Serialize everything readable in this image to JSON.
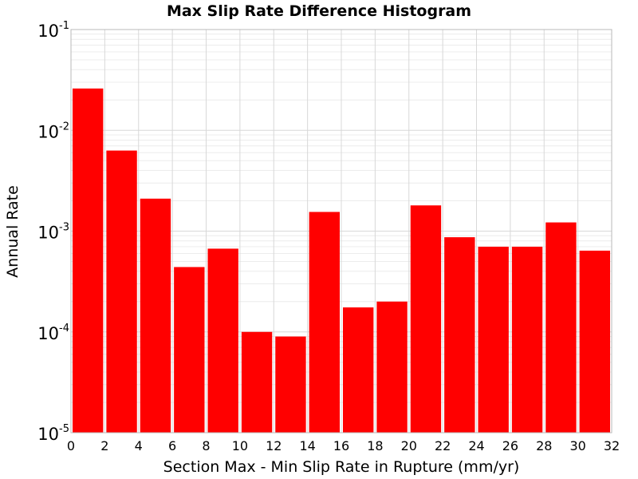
{
  "chart_data": {
    "type": "bar",
    "title": "Max Slip Rate Difference Histogram",
    "xlabel": "Section Max - Min Slip Rate in Rupture (mm/yr)",
    "ylabel": "Annual Rate",
    "xlim": [
      0,
      32
    ],
    "ylim": [
      1e-05,
      0.1
    ],
    "yscale": "log",
    "grid": true,
    "bar_color": "#ff0000",
    "xticks": [
      "0",
      "2",
      "4",
      "6",
      "8",
      "10",
      "12",
      "14",
      "16",
      "18",
      "20",
      "22",
      "24",
      "26",
      "28",
      "30",
      "32"
    ],
    "yticks": [
      {
        "value": 0.1,
        "base": "10",
        "exp": "-1"
      },
      {
        "value": 0.01,
        "base": "10",
        "exp": "-2"
      },
      {
        "value": 0.001,
        "base": "10",
        "exp": "-3"
      },
      {
        "value": 0.0001,
        "base": "10",
        "exp": "-4"
      },
      {
        "value": 1e-05,
        "base": "10",
        "exp": "-5"
      }
    ],
    "bins": [
      {
        "x0": 0,
        "x1": 2,
        "value": 0.026
      },
      {
        "x0": 2,
        "x1": 4,
        "value": 0.0063
      },
      {
        "x0": 4,
        "x1": 6,
        "value": 0.0021
      },
      {
        "x0": 6,
        "x1": 8,
        "value": 0.00044
      },
      {
        "x0": 8,
        "x1": 10,
        "value": 0.00067
      },
      {
        "x0": 10,
        "x1": 12,
        "value": 0.0001
      },
      {
        "x0": 12,
        "x1": 14,
        "value": 9e-05
      },
      {
        "x0": 14,
        "x1": 16,
        "value": 0.00155
      },
      {
        "x0": 16,
        "x1": 18,
        "value": 0.000175
      },
      {
        "x0": 18,
        "x1": 20,
        "value": 0.0002
      },
      {
        "x0": 20,
        "x1": 22,
        "value": 0.0018
      },
      {
        "x0": 22,
        "x1": 24,
        "value": 0.00087
      },
      {
        "x0": 24,
        "x1": 26,
        "value": 0.0007
      },
      {
        "x0": 26,
        "x1": 28,
        "value": 0.0007
      },
      {
        "x0": 28,
        "x1": 30,
        "value": 0.00122
      },
      {
        "x0": 30,
        "x1": 32,
        "value": 0.00064
      }
    ]
  }
}
